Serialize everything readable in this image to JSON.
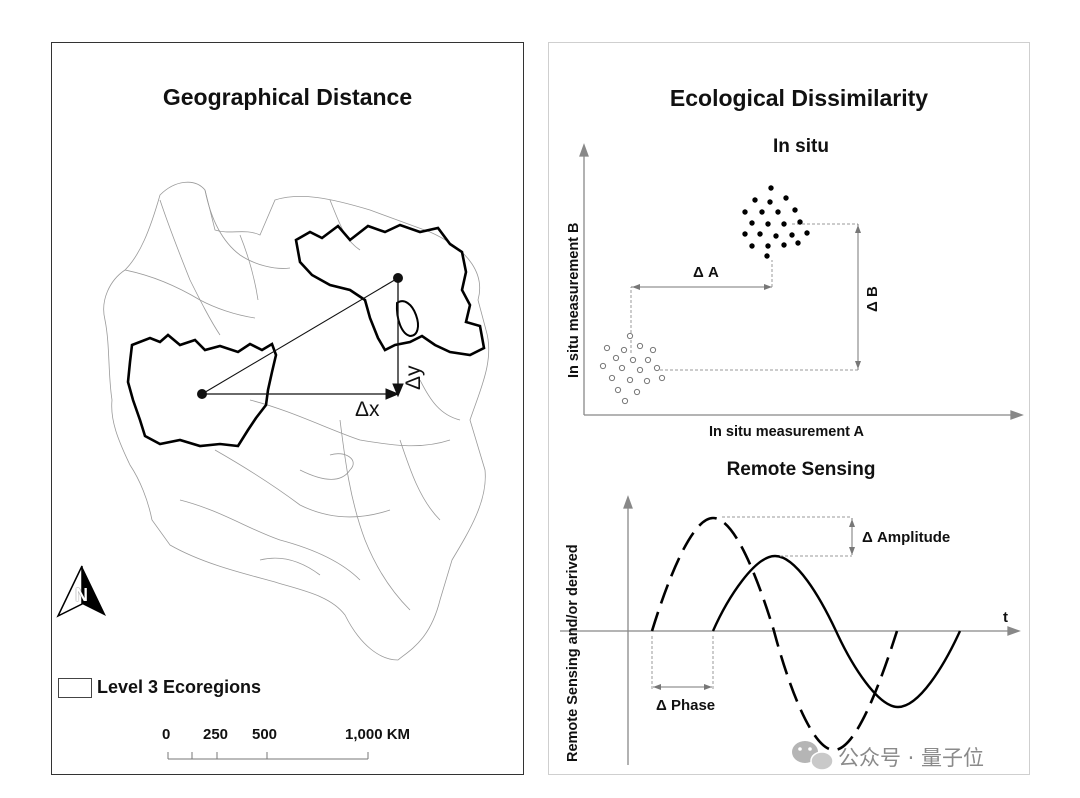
{
  "geographical": {
    "title": "Geographical Distance",
    "dx_label": "Δx",
    "dy_label": "Δy",
    "north_letter": "N",
    "legend_label": "Level 3 Ecoregions",
    "scale_labels": [
      "0",
      "250",
      "500",
      "1,000 KM"
    ]
  },
  "ecological": {
    "title": "Ecological Dissimilarity",
    "in_situ": {
      "subtitle": "In situ",
      "xlabel": "In situ measurement A",
      "ylabel": "In situ measurement B",
      "delta_a": "Δ A",
      "delta_b": "Δ B"
    },
    "remote": {
      "subtitle": "Remote Sensing",
      "ylabel": "Remote Sensing and/or derived",
      "t_label": "t",
      "delta_amplitude": "Δ Amplitude",
      "delta_phase": "Δ Phase"
    }
  },
  "watermark": {
    "text": "公众号 · 量子位"
  }
}
